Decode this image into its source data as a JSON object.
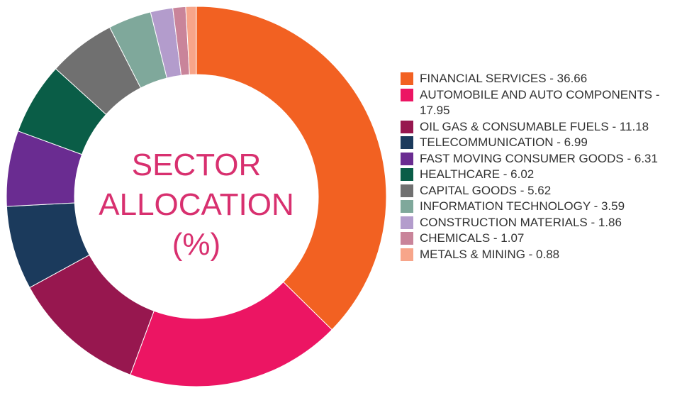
{
  "chart_data": {
    "type": "donut",
    "title": "SECTOR ALLOCATION (%)",
    "categories": [
      "FINANCIAL SERVICES - 36.66",
      "AUTOMOBILE AND AUTO COMPONENTS - 17.95",
      "OIL GAS & CONSUMABLE FUELS - 11.18",
      "TELECOMMUNICATION - 6.99",
      "FAST MOVING CONSUMER GOODS - 6.31",
      "HEALTHCARE - 6.02",
      "CAPITAL GOODS - 5.62",
      "INFORMATION TECHNOLOGY - 3.59",
      "CONSTRUCTION MATERIALS - 1.86",
      "CHEMICALS - 1.07",
      "METALS & MINING - 0.88"
    ],
    "values": [
      36.66,
      17.95,
      11.18,
      6.99,
      6.31,
      6.02,
      5.62,
      3.59,
      1.86,
      1.07,
      0.88
    ],
    "colors": [
      "#f26122",
      "#ec1563",
      "#97174f",
      "#1b3a5c",
      "#6a2c91",
      "#0a5d47",
      "#707070",
      "#7fa89b",
      "#b39ccc",
      "#c9849a",
      "#f7a58a"
    ],
    "legend": "right"
  }
}
